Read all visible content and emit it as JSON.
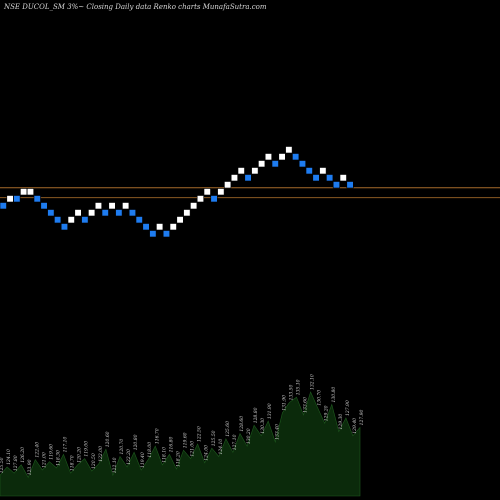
{
  "title": "NSE DUCOL_SM 3%~  Closing Daily data  Renko  charts MunafaSutra.com",
  "colors": {
    "background": "#000000",
    "up_brick": "#ffffff",
    "down_brick": "#1e7cf0",
    "line1": "#a56a2a",
    "line2": "#8a5a22",
    "volume_fill": "#0b2a0b",
    "volume_edge": "#1e5a1e",
    "volume_label": "#cfcfcf"
  },
  "chart_data": {
    "type": "renko",
    "bricks": [
      {
        "level": 0,
        "dir": "down"
      },
      {
        "level": 1,
        "dir": "up"
      },
      {
        "level": 1,
        "dir": "down"
      },
      {
        "level": 2,
        "dir": "up"
      },
      {
        "level": 2,
        "dir": "up"
      },
      {
        "level": 1,
        "dir": "down"
      },
      {
        "level": 0,
        "dir": "down"
      },
      {
        "level": -1,
        "dir": "down"
      },
      {
        "level": -2,
        "dir": "down"
      },
      {
        "level": -3,
        "dir": "down"
      },
      {
        "level": -2,
        "dir": "up"
      },
      {
        "level": -1,
        "dir": "up"
      },
      {
        "level": -2,
        "dir": "down"
      },
      {
        "level": -1,
        "dir": "up"
      },
      {
        "level": 0,
        "dir": "up"
      },
      {
        "level": -1,
        "dir": "down"
      },
      {
        "level": 0,
        "dir": "up"
      },
      {
        "level": -1,
        "dir": "down"
      },
      {
        "level": 0,
        "dir": "up"
      },
      {
        "level": -1,
        "dir": "down"
      },
      {
        "level": -2,
        "dir": "down"
      },
      {
        "level": -3,
        "dir": "down"
      },
      {
        "level": -4,
        "dir": "down"
      },
      {
        "level": -3,
        "dir": "up"
      },
      {
        "level": -4,
        "dir": "down"
      },
      {
        "level": -3,
        "dir": "up"
      },
      {
        "level": -2,
        "dir": "up"
      },
      {
        "level": -1,
        "dir": "up"
      },
      {
        "level": 0,
        "dir": "up"
      },
      {
        "level": 1,
        "dir": "up"
      },
      {
        "level": 2,
        "dir": "up"
      },
      {
        "level": 1,
        "dir": "down"
      },
      {
        "level": 2,
        "dir": "up"
      },
      {
        "level": 3,
        "dir": "up"
      },
      {
        "level": 4,
        "dir": "up"
      },
      {
        "level": 5,
        "dir": "up"
      },
      {
        "level": 4,
        "dir": "down"
      },
      {
        "level": 5,
        "dir": "up"
      },
      {
        "level": 6,
        "dir": "up"
      },
      {
        "level": 7,
        "dir": "up"
      },
      {
        "level": 6,
        "dir": "down"
      },
      {
        "level": 7,
        "dir": "up"
      },
      {
        "level": 8,
        "dir": "up"
      },
      {
        "level": 7,
        "dir": "down"
      },
      {
        "level": 6,
        "dir": "down"
      },
      {
        "level": 5,
        "dir": "down"
      },
      {
        "level": 4,
        "dir": "down"
      },
      {
        "level": 5,
        "dir": "up"
      },
      {
        "level": 4,
        "dir": "down"
      },
      {
        "level": 3,
        "dir": "down"
      },
      {
        "level": 4,
        "dir": "up"
      },
      {
        "level": 3,
        "dir": "down"
      }
    ],
    "reference_lines": [
      {
        "level": 2.6
      },
      {
        "level": 1.2
      }
    ],
    "volume": [
      20,
      28,
      22,
      30,
      18,
      35,
      25,
      33,
      27,
      40,
      22,
      30,
      36,
      24,
      31,
      45,
      20,
      38,
      28,
      42,
      25,
      35,
      48,
      30,
      40,
      26,
      44,
      36,
      50,
      32,
      46,
      38,
      55,
      42,
      60,
      48,
      68,
      58,
      72,
      52,
      80,
      90,
      95,
      78,
      100,
      85,
      70,
      88,
      62,
      75,
      58,
      66
    ],
    "volume_labels": [
      "125.50",
      "124.10",
      "127.80",
      "126.20",
      "123.90",
      "122.40",
      "121.00",
      "119.60",
      "118.30",
      "117.10",
      "118.70",
      "120.20",
      "119.00",
      "120.50",
      "122.00",
      "120.60",
      "122.10",
      "120.70",
      "122.20",
      "120.80",
      "119.40",
      "118.00",
      "116.70",
      "118.10",
      "116.80",
      "118.20",
      "119.60",
      "121.00",
      "122.50",
      "124.00",
      "125.50",
      "124.10",
      "125.60",
      "127.10",
      "128.60",
      "130.20",
      "128.80",
      "130.30",
      "131.90",
      "133.40",
      "131.90",
      "133.50",
      "135.10",
      "133.60",
      "132.10",
      "130.70",
      "129.20",
      "130.80",
      "129.30",
      "127.90",
      "129.40",
      "127.90"
    ]
  }
}
